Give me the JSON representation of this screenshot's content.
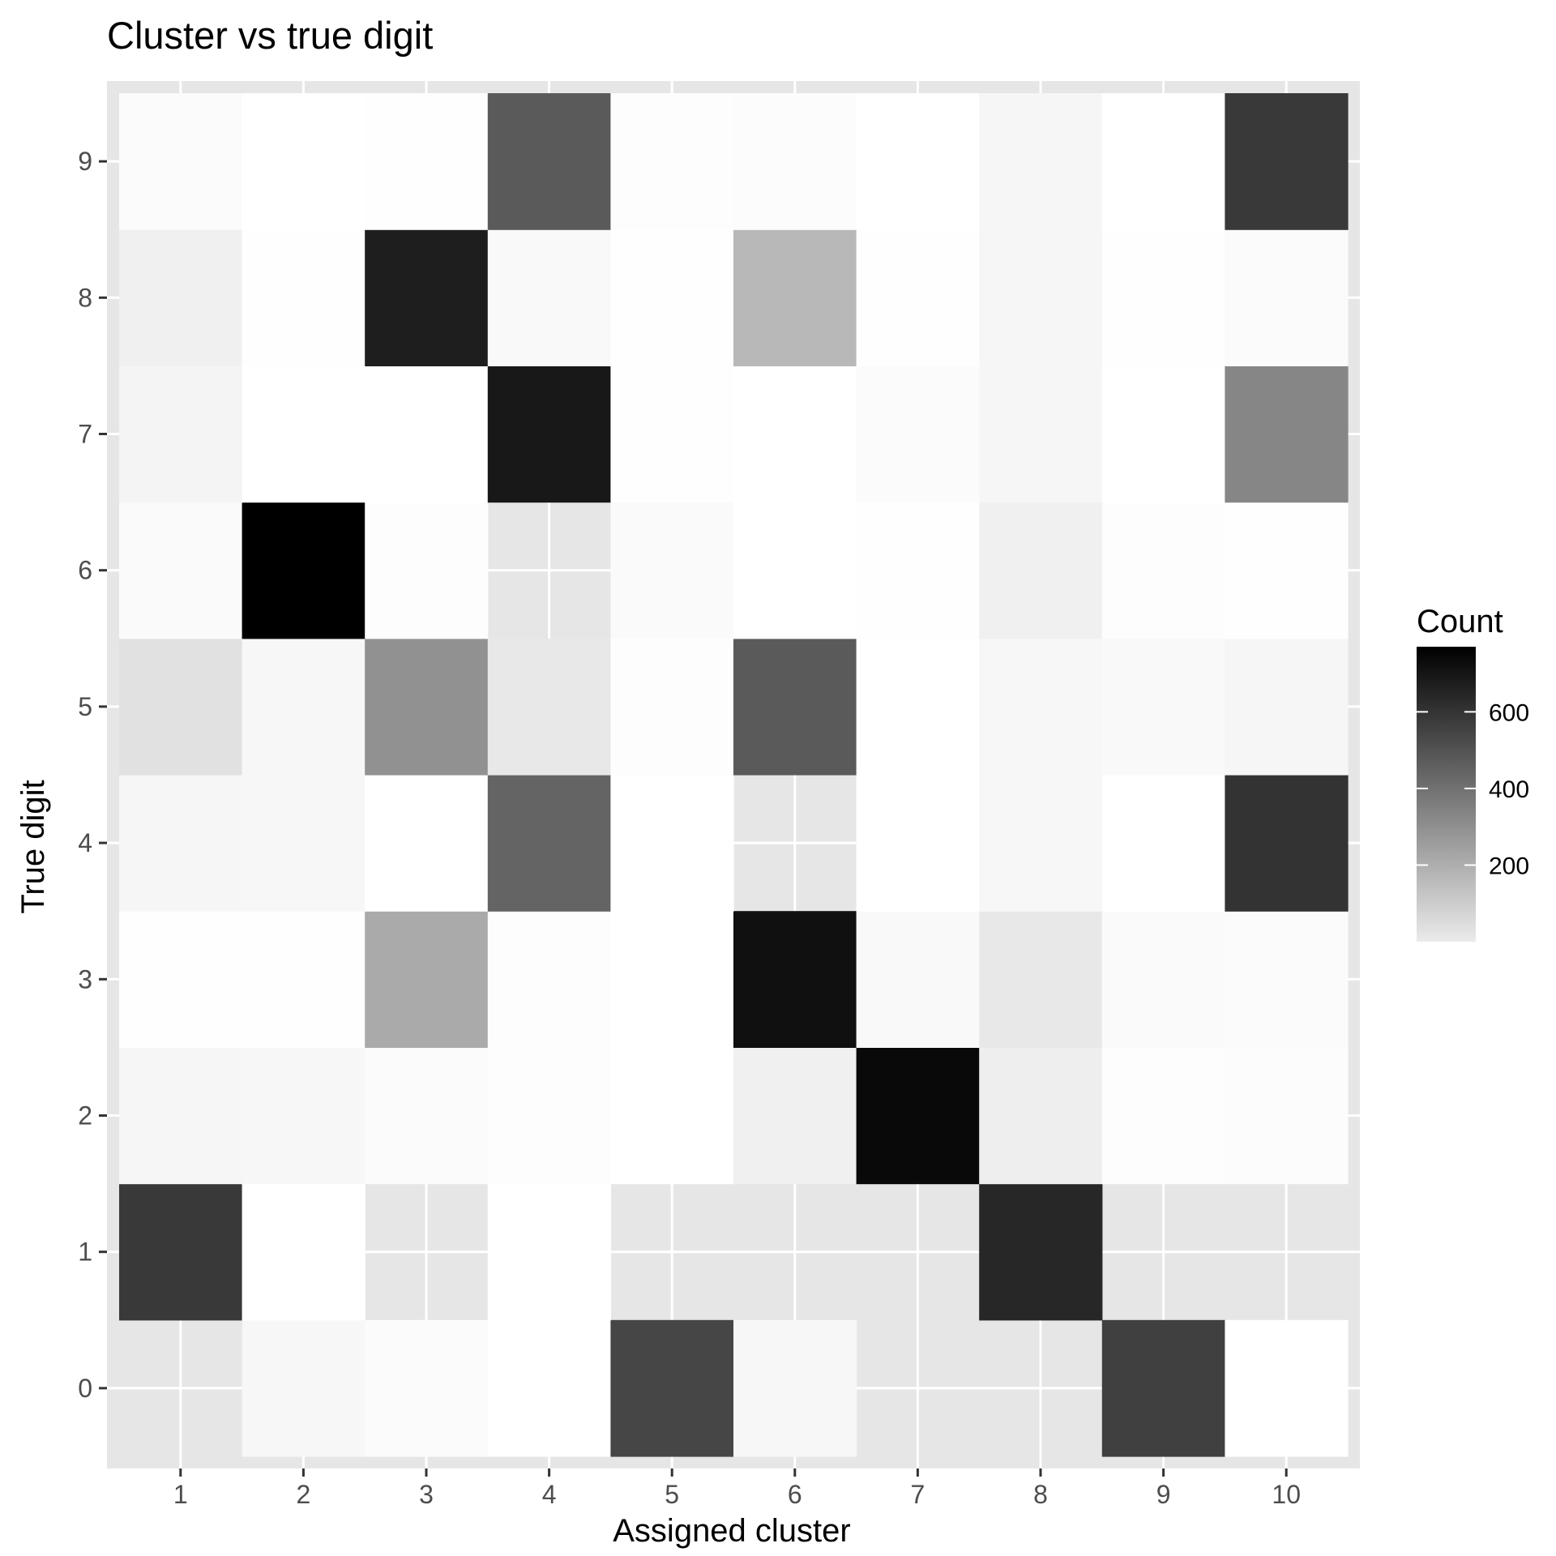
{
  "chart_data": {
    "type": "heatmap",
    "title": "Cluster vs true digit",
    "xlabel": "Assigned cluster",
    "ylabel": "True digit",
    "x_categories": [
      "1",
      "2",
      "3",
      "4",
      "5",
      "6",
      "7",
      "8",
      "9",
      "10"
    ],
    "y_categories": [
      "0",
      "1",
      "2",
      "3",
      "4",
      "5",
      "6",
      "7",
      "8",
      "9"
    ],
    "values": [
      [
        null,
        20,
        10,
        0,
        520,
        20,
        null,
        null,
        540,
        0
      ],
      [
        560,
        0,
        null,
        0,
        null,
        null,
        null,
        620,
        null,
        null
      ],
      [
        25,
        20,
        10,
        6,
        0,
        40,
        730,
        45,
        5,
        8
      ],
      [
        2,
        2,
        230,
        5,
        0,
        700,
        15,
        60,
        12,
        10
      ],
      [
        25,
        20,
        0,
        430,
        0,
        null,
        0,
        20,
        0,
        580
      ],
      [
        80,
        20,
        300,
        60,
        4,
        460,
        0,
        20,
        15,
        25
      ],
      [
        12,
        770,
        5,
        null,
        12,
        0,
        2,
        40,
        6,
        3
      ],
      [
        30,
        0,
        0,
        670,
        2,
        0,
        10,
        25,
        0,
        330
      ],
      [
        40,
        3,
        650,
        15,
        3,
        190,
        3,
        25,
        3,
        10
      ],
      [
        10,
        0,
        3,
        460,
        5,
        8,
        0,
        25,
        0,
        560
      ]
    ],
    "colorbar": {
      "title": "Count",
      "ticks": [
        200,
        400,
        600
      ],
      "min": 0,
      "max": 770,
      "low_color": "#ffffff",
      "high_color": "#000000"
    },
    "panel_background": "#e6e6e6",
    "grid": true,
    "legend_position": "right"
  }
}
